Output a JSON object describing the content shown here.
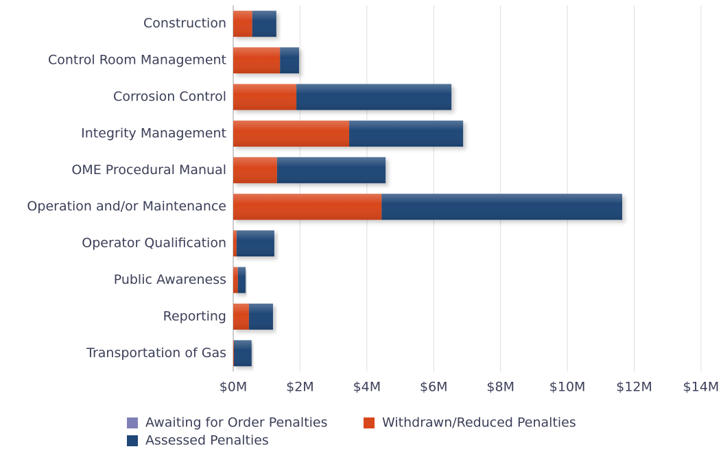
{
  "chart_data": {
    "type": "stacked_bar_horizontal",
    "categories": [
      "Construction",
      "Control Room Management",
      "Corrosion Control",
      "Integrity Management",
      "OME Procedural Manual",
      "Operation and/or Maintenance",
      "Operator Qualification",
      "Public Awareness",
      "Reporting",
      "Transportation of Gas"
    ],
    "series": [
      {
        "name": "Awaiting for Order Penalties",
        "color": "#7f7fb8",
        "values": [
          0,
          0,
          0,
          0,
          0,
          0,
          0,
          0,
          0,
          0
        ]
      },
      {
        "name": "Withdrawn/Reduced Penalties",
        "color": "#d8461b",
        "values": [
          0.57,
          1.4,
          1.89,
          3.47,
          1.31,
          4.44,
          0.1,
          0.14,
          0.47,
          0.02
        ]
      },
      {
        "name": "Assessed Penalties",
        "color": "#1f4777",
        "values": [
          0.72,
          0.57,
          4.64,
          3.41,
          3.25,
          7.2,
          1.13,
          0.23,
          0.72,
          0.53
        ]
      }
    ],
    "xlim": [
      0,
      14
    ],
    "xticks": [
      {
        "value": 0,
        "label": "$0M"
      },
      {
        "value": 2,
        "label": "$2M"
      },
      {
        "value": 4,
        "label": "$4M"
      },
      {
        "value": 6,
        "label": "$6M"
      },
      {
        "value": 8,
        "label": "$8M"
      },
      {
        "value": 10,
        "label": "$10M"
      },
      {
        "value": 12,
        "label": "$12M"
      },
      {
        "value": 14,
        "label": "$14M"
      }
    ],
    "grid": true,
    "legend": "bottom"
  }
}
